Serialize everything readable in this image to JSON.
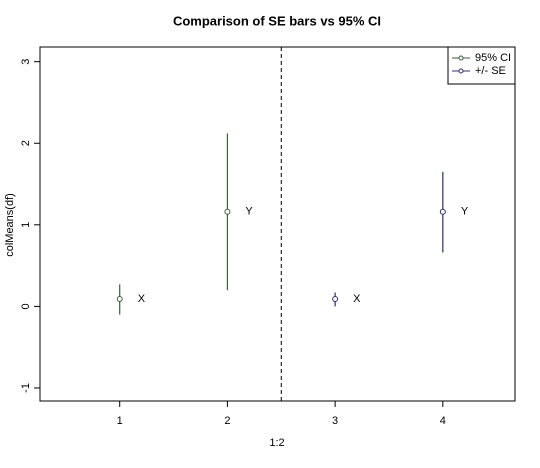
{
  "chart_data": {
    "type": "errorbar",
    "title": "Comparison of SE bars vs 95% CI",
    "x_label": "1:2",
    "y_label": "colMeans(df)",
    "xlim": [
      0.26,
      4.67
    ],
    "ylim": [
      -1.16,
      3.18
    ],
    "xticks": [
      1,
      2,
      3,
      4
    ],
    "yticks": [
      -1,
      0,
      1,
      2,
      3
    ],
    "vline": 2.5,
    "legend": "top-right",
    "series": [
      {
        "name": "95% CI",
        "color": "#3d5c3d",
        "x": [
          1,
          2
        ],
        "values": [
          0.09,
          1.16
        ],
        "lower": [
          -0.1,
          0.2
        ],
        "upper": [
          0.27,
          2.12
        ],
        "point_labels": [
          "X",
          "Y"
        ]
      },
      {
        "name": "+/- SE",
        "color": "#2f2f6a",
        "x": [
          3,
          4
        ],
        "values": [
          0.09,
          1.16
        ],
        "lower": [
          0.0,
          0.66
        ],
        "upper": [
          0.17,
          1.65
        ],
        "point_labels": [
          "X",
          "Y"
        ]
      }
    ]
  }
}
